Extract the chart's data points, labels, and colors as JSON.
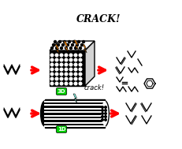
{
  "bg_color": "#ffffff",
  "arrow_color": "#ff0000",
  "top_label_3d": "3D",
  "bot_label_1d": "1D",
  "label_bg": "#00cc00",
  "crack_top_text": "CRACK!",
  "crack_bot_text": "crack!",
  "lightning_top_color": "#ff8800",
  "lightning_bot_color": "#88ffee",
  "figsize": [
    2.31,
    1.89
  ],
  "dpi": 100
}
